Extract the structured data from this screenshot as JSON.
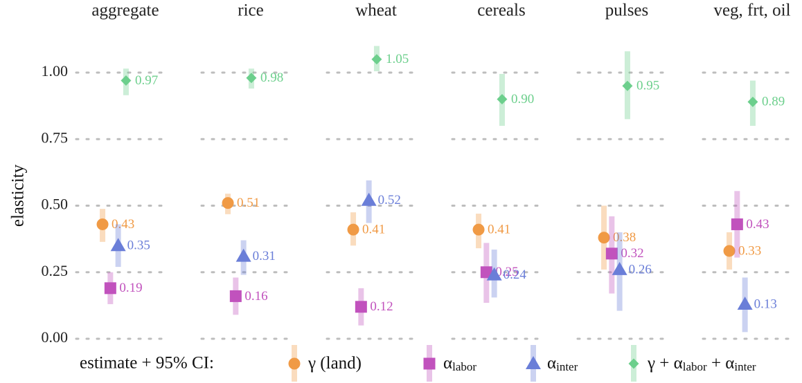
{
  "chart_data": {
    "type": "dotplot",
    "ylabel": "elasticity",
    "legend_title": "estimate + 95% CI:",
    "legend": "bottom",
    "grid": true,
    "categories": [
      "aggregate",
      "rice",
      "wheat",
      "cereals",
      "pulses",
      "veg, frt, oil"
    ],
    "ylim": [
      -0.03,
      1.12
    ],
    "yticks": [
      {
        "value": 0,
        "label": "0.00"
      },
      {
        "value": 0.25,
        "label": "0.25"
      },
      {
        "value": 0.5,
        "label": "0.50"
      },
      {
        "value": 0.75,
        "label": "0.75"
      },
      {
        "value": 1,
        "label": "1.00"
      }
    ],
    "series": [
      {
        "name": [
          {
            "t": "γ (land)"
          }
        ],
        "color": "#f09a45",
        "marker": "circle",
        "values": [
          0.43,
          0.51,
          0.41,
          0.41,
          0.38,
          0.33
        ],
        "value_labels": [
          "0.43",
          "0.51",
          "0.41",
          "0.41",
          "0.38",
          "0.33"
        ],
        "lower": [
          0.364,
          0.468,
          0.35,
          0.34,
          0.26,
          0.26
        ],
        "upper": [
          0.488,
          0.545,
          0.475,
          0.47,
          0.5,
          0.4
        ]
      },
      {
        "name": [
          {
            "t": "α"
          },
          {
            "t": "labor",
            "sub": true
          }
        ],
        "color": "#c152bd",
        "marker": "square",
        "values": [
          0.19,
          0.16,
          0.12,
          0.25,
          0.32,
          0.43
        ],
        "value_labels": [
          "0.19",
          "0.16",
          "0.12",
          "0.25",
          "0.32",
          "0.43"
        ],
        "lower": [
          0.13,
          0.09,
          0.05,
          0.135,
          0.17,
          0.305
        ],
        "upper": [
          0.25,
          0.23,
          0.19,
          0.36,
          0.46,
          0.555
        ]
      },
      {
        "name": [
          {
            "t": "α"
          },
          {
            "t": "inter",
            "sub": true
          }
        ],
        "color": "#6a7ed8",
        "marker": "triangle",
        "values": [
          0.35,
          0.31,
          0.52,
          0.24,
          0.26,
          0.13
        ],
        "value_labels": [
          "0.35",
          "0.31",
          "0.52",
          "0.24",
          "0.26",
          "0.13"
        ],
        "lower": [
          0.27,
          0.24,
          0.435,
          0.155,
          0.105,
          0.025
        ],
        "upper": [
          0.43,
          0.37,
          0.595,
          0.335,
          0.4,
          0.23
        ]
      },
      {
        "name": [
          {
            "t": "γ + α"
          },
          {
            "t": "labor",
            "sub": true
          },
          {
            "t": " + α"
          },
          {
            "t": "inter",
            "sub": true
          }
        ],
        "color": "#6ccf8c",
        "marker": "diamond",
        "values": [
          0.97,
          0.98,
          1.05,
          0.9,
          0.95,
          0.89
        ],
        "value_labels": [
          "0.97",
          "0.98",
          "1.05",
          "0.90",
          "0.95",
          "0.89"
        ],
        "lower": [
          0.915,
          0.94,
          1.005,
          0.8,
          0.825,
          0.8
        ],
        "upper": [
          1.015,
          1.015,
          1.1,
          0.995,
          1.08,
          0.97
        ]
      }
    ]
  }
}
